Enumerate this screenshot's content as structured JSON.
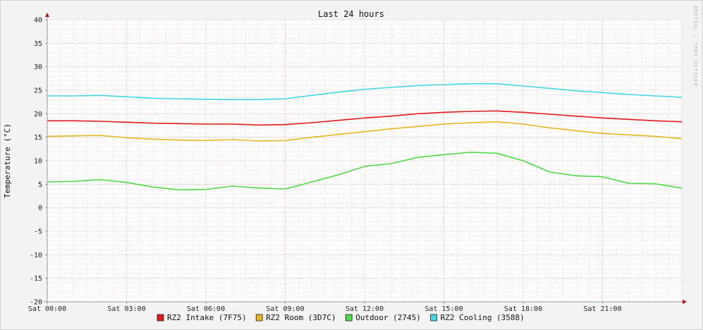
{
  "chart_data": {
    "type": "line",
    "title": "Last 24 hours",
    "ylabel": "Temperature (°C)",
    "xlabel": "",
    "watermark": "RRDTOOL / TOBI OETIKER",
    "ylim": [
      -20,
      40
    ],
    "yticks": [
      40,
      35,
      30,
      25,
      20,
      15,
      10,
      5,
      0,
      -5,
      -10,
      -15,
      -20
    ],
    "xlim_hours": [
      0,
      24
    ],
    "xticks": [
      {
        "hour": 0,
        "label": "Sat 00:00"
      },
      {
        "hour": 3,
        "label": "Sat 03:00"
      },
      {
        "hour": 6,
        "label": "Sat 06:00"
      },
      {
        "hour": 9,
        "label": "Sat 09:00"
      },
      {
        "hour": 12,
        "label": "Sat 12:00"
      },
      {
        "hour": 15,
        "label": "Sat 15:00"
      },
      {
        "hour": 18,
        "label": "Sat 18:00"
      },
      {
        "hour": 21,
        "label": "Sat 21:00"
      }
    ],
    "grid": true,
    "legend_position": "bottom",
    "x_hours": [
      0,
      1,
      2,
      3,
      4,
      5,
      6,
      7,
      8,
      9,
      10,
      11,
      12,
      13,
      14,
      15,
      16,
      17,
      18,
      19,
      20,
      21,
      22,
      23,
      24
    ],
    "series": [
      {
        "name": "RZ2 Intake (7F75)",
        "color": "#e31a1c",
        "values": [
          18.5,
          18.5,
          18.4,
          18.2,
          18.0,
          17.9,
          17.8,
          17.8,
          17.6,
          17.7,
          18.1,
          18.6,
          19.1,
          19.5,
          20.0,
          20.3,
          20.5,
          20.6,
          20.3,
          19.9,
          19.5,
          19.1,
          18.8,
          18.5,
          18.3
        ]
      },
      {
        "name": "RZ2 Room (3D7C)",
        "color": "#e6b71e",
        "values": [
          15.2,
          15.3,
          15.4,
          14.9,
          14.6,
          14.4,
          14.3,
          14.5,
          14.2,
          14.3,
          15.0,
          15.6,
          16.2,
          16.8,
          17.3,
          17.8,
          18.1,
          18.3,
          17.8,
          17.0,
          16.4,
          15.8,
          15.5,
          15.2,
          14.7
        ]
      },
      {
        "name": "Outdoor (2745)",
        "color": "#4fd84a",
        "values": [
          5.5,
          5.6,
          6.0,
          5.4,
          4.4,
          3.8,
          3.9,
          4.6,
          4.2,
          4.0,
          5.5,
          7.0,
          8.8,
          9.4,
          10.7,
          11.3,
          11.8,
          11.6,
          10.0,
          7.6,
          6.8,
          6.6,
          5.2,
          5.1,
          4.2
        ]
      },
      {
        "name": "RZ2 Cooling (3588)",
        "color": "#41d6e6",
        "values": [
          23.8,
          23.8,
          23.9,
          23.6,
          23.3,
          23.2,
          23.1,
          23.0,
          23.0,
          23.2,
          23.9,
          24.6,
          25.2,
          25.6,
          26.0,
          26.2,
          26.4,
          26.4,
          25.9,
          25.4,
          24.9,
          24.5,
          24.1,
          23.8,
          23.5
        ]
      }
    ]
  }
}
